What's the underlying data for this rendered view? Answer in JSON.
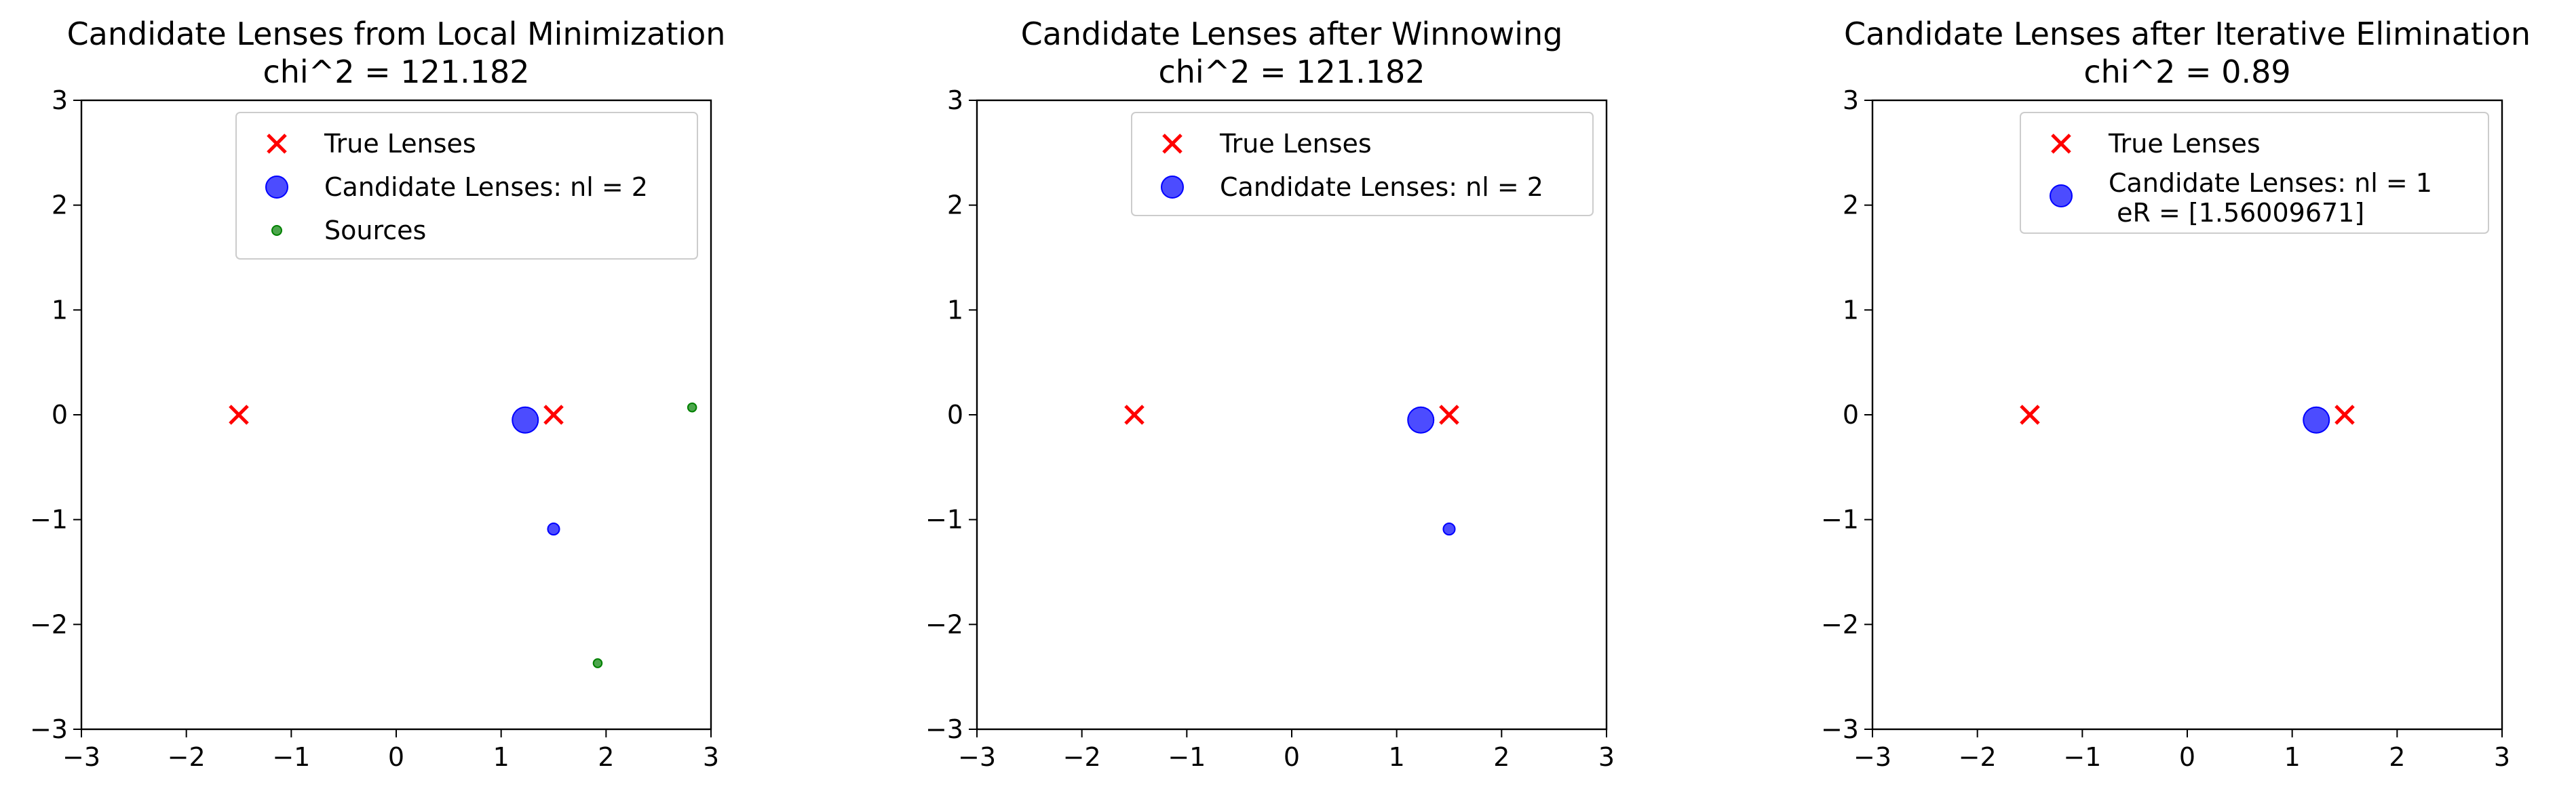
{
  "chart_data": [
    {
      "type": "scatter",
      "title": "Candidate Lenses from Local Minimization",
      "subtitle": "chi^2 = 121.182",
      "xlim": [
        -3,
        3
      ],
      "ylim": [
        -3,
        3
      ],
      "xticks": [
        "−3",
        "−2",
        "−1",
        "0",
        "1",
        "2",
        "3"
      ],
      "yticks": [
        "−3",
        "−2",
        "−1",
        "0",
        "1",
        "2",
        "3"
      ],
      "grid": false,
      "legend_position": "top-right",
      "series": [
        {
          "name": "True Lenses",
          "marker": "x",
          "color": "#ff0000",
          "points": [
            [
              -1.5,
              0.0
            ],
            [
              1.5,
              0.0
            ]
          ]
        },
        {
          "name": "Candidate Lenses: nl = 2",
          "marker": "circle",
          "color": "#0000ff",
          "points": [
            [
              1.23,
              -0.05
            ],
            [
              1.5,
              -1.09
            ]
          ],
          "relative_sizes": [
            1.0,
            0.45
          ]
        },
        {
          "name": "Sources",
          "marker": "circle",
          "color": "#008000",
          "points": [
            [
              2.82,
              0.07
            ],
            [
              1.92,
              -2.37
            ]
          ],
          "relative_sizes": [
            0.33,
            0.33
          ]
        }
      ]
    },
    {
      "type": "scatter",
      "title": "Candidate Lenses after Winnowing",
      "subtitle": "chi^2 = 121.182",
      "xlim": [
        -3,
        3
      ],
      "ylim": [
        -3,
        3
      ],
      "xticks": [
        "−3",
        "−2",
        "−1",
        "0",
        "1",
        "2",
        "3"
      ],
      "yticks": [
        "−3",
        "−2",
        "−1",
        "0",
        "1",
        "2",
        "3"
      ],
      "grid": false,
      "legend_position": "top-right",
      "series": [
        {
          "name": "True Lenses",
          "marker": "x",
          "color": "#ff0000",
          "points": [
            [
              -1.5,
              0.0
            ],
            [
              1.5,
              0.0
            ]
          ]
        },
        {
          "name": "Candidate Lenses: nl = 2",
          "marker": "circle",
          "color": "#0000ff",
          "points": [
            [
              1.23,
              -0.05
            ],
            [
              1.5,
              -1.09
            ]
          ],
          "relative_sizes": [
            1.0,
            0.45
          ]
        }
      ]
    },
    {
      "type": "scatter",
      "title": "Candidate Lenses after Iterative Elimination",
      "subtitle": "chi^2 = 0.89",
      "xlim": [
        -3,
        3
      ],
      "ylim": [
        -3,
        3
      ],
      "xticks": [
        "−3",
        "−2",
        "−1",
        "0",
        "1",
        "2",
        "3"
      ],
      "yticks": [
        "−3",
        "−2",
        "−1",
        "0",
        "1",
        "2",
        "3"
      ],
      "grid": false,
      "legend_position": "top-right",
      "series": [
        {
          "name": "True Lenses",
          "marker": "x",
          "color": "#ff0000",
          "points": [
            [
              -1.5,
              0.0
            ],
            [
              1.5,
              0.0
            ]
          ]
        },
        {
          "name": "Candidate Lenses: nl = 1\n eR = [1.56009671]",
          "marker": "circle",
          "color": "#0000ff",
          "points": [
            [
              1.23,
              -0.05
            ]
          ],
          "relative_sizes": [
            1.0
          ]
        }
      ]
    }
  ]
}
